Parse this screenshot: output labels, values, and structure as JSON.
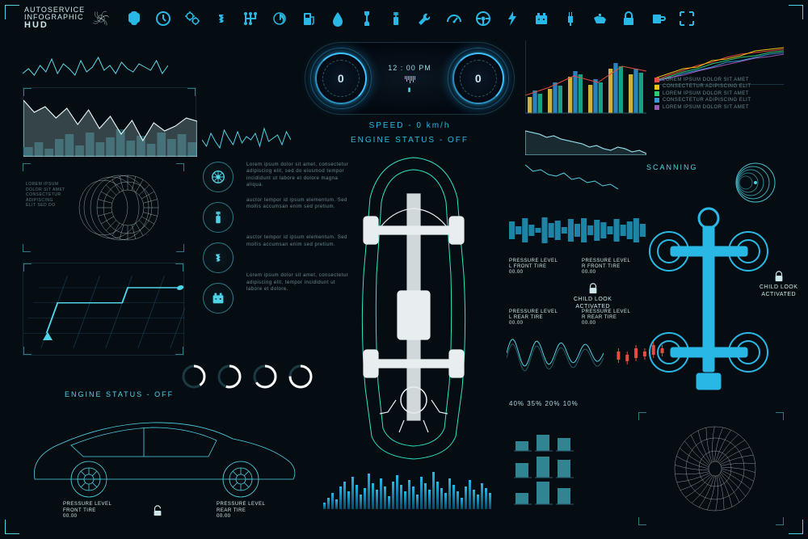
{
  "colors": {
    "bg": "#050d12",
    "cyan": "#4fd3e6",
    "cyan_bright": "#29b8e6",
    "blue_deep": "#1a6aa0",
    "white": "#ffffff",
    "dim": "#6a8a92"
  },
  "header": {
    "line1": "AUTOSERVICE",
    "line2": "INFOGRAPHIC",
    "line3": "HUD",
    "icons": [
      "brain-icon",
      "clock-icon",
      "gears-icon",
      "shock-icon",
      "gearbox-icon",
      "turbo-icon",
      "fuelpump-icon",
      "drop-icon",
      "spanner-icon",
      "piston-icon",
      "wrench-icon",
      "speedo-icon",
      "steering-icon",
      "bolt-icon",
      "battery-icon",
      "sparkplug-icon",
      "oilcan-icon",
      "lock-icon",
      "cup-icon",
      "expand-icon"
    ]
  },
  "dash": {
    "time": "12 : 00 PM",
    "gauge_left": "0",
    "gauge_right": "0",
    "speed_label": "SPEED - 0 km/h",
    "engine_label": "ENGINE STATUS - OFF"
  },
  "oscillo1": {
    "type": "line",
    "color": "#5fd8ea",
    "points": [
      12,
      18,
      10,
      22,
      14,
      30,
      12,
      24,
      18,
      10,
      28,
      14,
      20,
      32,
      16,
      22,
      12,
      26,
      18,
      14,
      24,
      20,
      16,
      28,
      12,
      22
    ]
  },
  "oscillo2": {
    "type": "area+bars",
    "area_color": "#bfe8f0",
    "bars_color": "#4fd3e6",
    "curve": [
      70,
      55,
      62,
      48,
      60,
      40,
      58,
      35,
      50,
      28,
      45,
      20,
      42,
      32,
      38,
      48,
      44
    ],
    "bars": [
      12,
      18,
      10,
      22,
      28,
      14,
      30,
      18,
      24,
      34,
      20,
      26,
      16,
      30,
      22,
      28,
      18
    ]
  },
  "oscillo3": {
    "type": "line",
    "color": "#4fd3e6",
    "points": [
      20,
      12,
      28,
      18,
      10,
      32,
      22,
      14,
      30,
      16,
      24,
      20,
      28,
      12,
      34,
      18,
      22,
      26,
      14,
      30,
      20
    ]
  },
  "rt_bar": {
    "type": "grouped-bar",
    "groups": 6,
    "series": [
      {
        "color": "#f4d03f",
        "vals": [
          20,
          30,
          45,
          35,
          55,
          48
        ]
      },
      {
        "color": "#3498db",
        "vals": [
          28,
          38,
          52,
          42,
          62,
          55
        ]
      },
      {
        "color": "#1abc9c",
        "vals": [
          24,
          34,
          48,
          38,
          58,
          50
        ]
      }
    ],
    "line": {
      "color": "#e74c3c",
      "pts": [
        22,
        32,
        46,
        38,
        58,
        52
      ]
    }
  },
  "rt_multi": {
    "type": "multiline",
    "xlim": [
      0,
      100
    ],
    "ylim": [
      0,
      60
    ],
    "lines": [
      {
        "color": "#e74c3c",
        "pts": [
          5,
          12,
          18,
          24,
          28,
          34,
          38,
          40,
          42,
          44
        ]
      },
      {
        "color": "#f1c40f",
        "pts": [
          8,
          14,
          20,
          22,
          30,
          32,
          36,
          42,
          44,
          46
        ]
      },
      {
        "color": "#2ecc71",
        "pts": [
          4,
          10,
          16,
          20,
          26,
          30,
          34,
          36,
          40,
          42
        ]
      },
      {
        "color": "#3498db",
        "pts": [
          6,
          8,
          14,
          18,
          22,
          28,
          30,
          34,
          38,
          40
        ]
      },
      {
        "color": "#9b59b6",
        "pts": [
          3,
          9,
          12,
          17,
          21,
          25,
          29,
          33,
          35,
          38
        ]
      }
    ],
    "legend": [
      "LOREM IPSUM DOLOR SIT AMET",
      "CONSECTETUR ADIPISCING ELIT",
      "LOREM IPSUM DOLOR SIT AMET",
      "CONSECTETUR ADIPISCING ELIT",
      "LOREM IPSUM DOLOR SIT AMET"
    ],
    "legend_colors": [
      "#e74c3c",
      "#f1c40f",
      "#2ecc71",
      "#3498db",
      "#9b59b6"
    ]
  },
  "rt_line": {
    "type": "line",
    "color": "#8fd8e6",
    "pts": [
      30,
      28,
      26,
      22,
      24,
      20,
      18,
      16,
      14,
      10,
      12,
      8,
      6,
      10,
      8,
      4,
      6,
      2
    ]
  },
  "chart_med": {
    "type": "line",
    "color": "#4fd3e6",
    "pts": [
      40,
      32,
      34,
      28,
      26,
      30,
      22,
      24,
      18,
      20,
      14,
      16,
      10
    ]
  },
  "scanning": "SCANNING",
  "target_rings": {
    "count": 5,
    "color": "#4fd3e6"
  },
  "comp_icons": [
    "wheel-icon",
    "piston-icon",
    "shock-icon",
    "battery-icon"
  ],
  "comp_text": {
    "p1": "Lorem ipsum dolor sit amet, consectetur adipiscing elit, sed do eiusmod tempor incididunt ut labore et dolore magna aliqua.",
    "p2": "auctor tempor id ipsum elementum. Sed mollis accumsan enim sed pretium.",
    "p3": "auctor tempor id ipsum elementum. Sed mollis accumsan enim sed pretium.",
    "p4": "Lorem ipsum dolor sit amet, consectetur adipiscing elit, tempor incididunt ut labore et dolore."
  },
  "clutch_text": "LOREM IPSUM\nDOLOR SIT AMET\nCONSECTETUR\nADIPISCING\nELIT SED DO",
  "donuts": [
    {
      "pct": 40,
      "color": "#ffffff"
    },
    {
      "pct": 55,
      "color": "#ffffff"
    },
    {
      "pct": 65,
      "color": "#ffffff"
    },
    {
      "pct": 75,
      "color": "#ffffff"
    }
  ],
  "side_car": {
    "engine_label": "ENGINE STATUS - OFF"
  },
  "pressure": {
    "lf": {
      "title": "PRESSURE LEVEL",
      "sub": "L FRONT TIRE",
      "val": "00.00"
    },
    "rf": {
      "title": "PRESSURE LEVEL",
      "sub": "R FRONT TIRE",
      "val": "00.00"
    },
    "lr": {
      "title": "PRESSURE LEVEL",
      "sub": "L REAR TIRE",
      "val": "00.00"
    },
    "rr": {
      "title": "PRESSURE LEVEL",
      "sub": "R REAR TIRE",
      "val": "00.00"
    }
  },
  "childlock_label": "CHILD LOOK\nACTIVATED",
  "wave_w": {
    "color": "#29b8e6",
    "pts": [
      22,
      10,
      30,
      14,
      6,
      32,
      18,
      24,
      8,
      28,
      16,
      30,
      12,
      26,
      20,
      10,
      28,
      14,
      22,
      30,
      16
    ]
  },
  "wavy": {
    "color": "#4fd3e6",
    "amp": 18,
    "freq": 4
  },
  "candle": {
    "color": "#e74c3c",
    "vals": [
      {
        "o": 20,
        "c": 30,
        "h": 34,
        "l": 16
      },
      {
        "o": 26,
        "c": 18,
        "h": 30,
        "l": 14
      },
      {
        "o": 22,
        "c": 34,
        "h": 38,
        "l": 18
      },
      {
        "o": 30,
        "c": 24,
        "h": 34,
        "l": 20
      },
      {
        "o": 26,
        "c": 38,
        "h": 42,
        "l": 22
      },
      {
        "o": 34,
        "c": 28,
        "h": 38,
        "l": 24
      }
    ]
  },
  "pct_line": "40%  35%  20%  10%",
  "eq_bars": [
    8,
    14,
    20,
    12,
    28,
    34,
    22,
    40,
    30,
    18,
    26,
    44,
    32,
    24,
    38,
    28,
    16,
    34,
    42,
    30,
    22,
    36,
    28,
    18,
    40,
    32,
    24,
    46,
    34,
    26,
    20,
    38,
    30,
    22,
    14,
    28,
    36,
    24,
    18,
    32,
    26,
    20
  ],
  "turbine_bars": {
    "rows": 3,
    "cols": 3,
    "vals": [
      [
        12,
        20,
        16
      ],
      [
        18,
        26,
        22
      ],
      [
        14,
        28,
        20
      ]
    ],
    "color": "#4fd3e6"
  },
  "side_pressure": {
    "front": {
      "title": "PRESSURE LEVEL",
      "sub": "FRONT TIRE",
      "val": "00.00"
    },
    "rear": {
      "title": "PRESSURE LEVEL",
      "sub": "REAR TIRE",
      "val": "00.00"
    }
  }
}
